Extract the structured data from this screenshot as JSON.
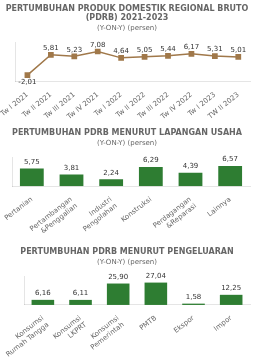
{
  "chart_data": [
    {
      "type": "line",
      "title": "PERTUMBUHAN PRODUK DOMESTIK REGIONAL BRUTO (PDRB) 2021-2023",
      "subtitle": "(Y-ON-Y) (persen)",
      "categories": [
        "Tw I 2021",
        "Tw II 2021",
        "Tw III 2021",
        "Tw IV 2021",
        "Tw I 2022",
        "Tw II 2022",
        "Tw III 2022",
        "Tw IV 2022",
        "Tw I 2023",
        "TW II 2023"
      ],
      "values": [
        -2.01,
        5.81,
        5.23,
        7.08,
        4.64,
        5.05,
        5.44,
        6.17,
        5.31,
        5.01
      ],
      "value_labels": [
        "-2,01",
        "5,81",
        "5,23",
        "7,08",
        "4,64",
        "5,05",
        "5,44",
        "6,17",
        "5,31",
        "5,01"
      ],
      "color": "#a0784a",
      "marker": "square",
      "ylim": [
        -4.5,
        10.5
      ],
      "grid": false,
      "data_labels": true,
      "tick_labels": "x"
    },
    {
      "type": "bar",
      "title": "PERTUMBUHAN PDRB MENURUT LAPANGAN USAHA",
      "subtitle": "(Y-ON-Y) (persen)",
      "categories": [
        "Pertanian",
        "Pertambangan\n&Penggalian",
        "Industri\nPengolahan",
        "Konstruksi",
        "Perdagangan\n&Reparasi",
        "Lainnya"
      ],
      "values": [
        5.75,
        3.81,
        2.24,
        6.29,
        4.39,
        6.57
      ],
      "value_labels": [
        "5,75",
        "3,81",
        "2,24",
        "6,29",
        "4,39",
        "6,57"
      ],
      "color": "#2e7d32",
      "ylim": [
        0,
        9.5
      ],
      "grid": false,
      "data_labels": true,
      "tick_labels": "x"
    },
    {
      "type": "bar",
      "title": "PERTUMBUHAN PDRB MENURUT PENGELUARAN",
      "subtitle": "(Y-ON-Y) (persen)",
      "categories": [
        "Konsumsi\nRumah Tangga",
        "Konsumsi\nLKPRT",
        "Konsumsi\nPemerintah",
        "PMTB",
        "Ekspor",
        "Impor"
      ],
      "values": [
        6.16,
        6.11,
        25.9,
        27.04,
        1.58,
        12.25
      ],
      "value_labels": [
        "6,16",
        "6,11",
        "25,90",
        "27,04",
        "1,58",
        "12,25"
      ],
      "color": "#2e7d32",
      "ylim": [
        0,
        35
      ],
      "grid": false,
      "data_labels": true,
      "tick_labels": "x"
    }
  ]
}
